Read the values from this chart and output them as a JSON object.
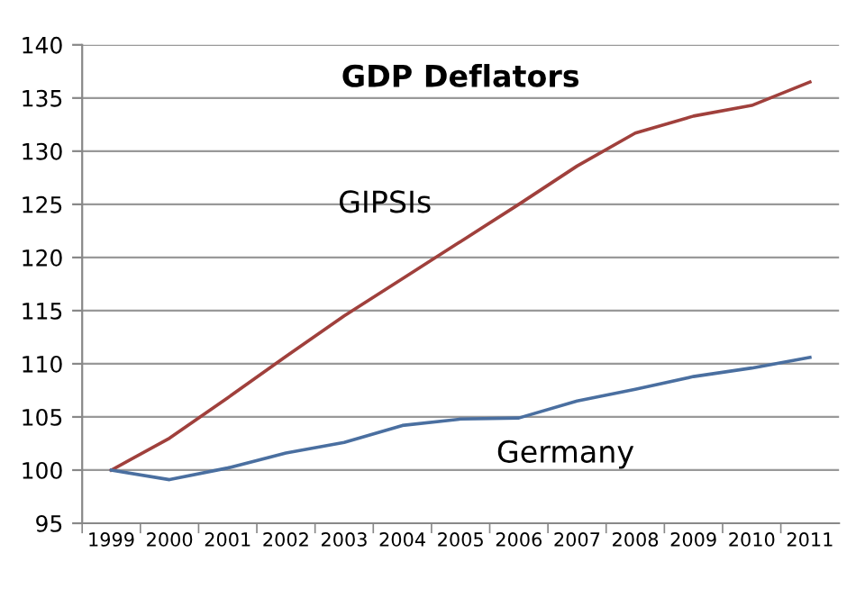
{
  "chart_data": {
    "type": "line",
    "title": "GDP Deflators",
    "categories": [
      "1999",
      "2000",
      "2001",
      "2002",
      "2003",
      "2004",
      "2005",
      "2006",
      "2007",
      "2008",
      "2009",
      "2010",
      "2011"
    ],
    "series": [
      {
        "name": "GIPSIs",
        "color": "#a0403c",
        "values": [
          100,
          103,
          106.8,
          110.7,
          114.5,
          118,
          121.5,
          125,
          128.6,
          131.7,
          133.3,
          134.3,
          136.5
        ]
      },
      {
        "name": "Germany",
        "color": "#4a6fa0",
        "values": [
          100,
          99.1,
          100.2,
          101.6,
          102.6,
          104.2,
          104.8,
          104.9,
          106.5,
          107.6,
          108.8,
          109.6,
          110.6
        ]
      }
    ],
    "ylim": [
      95,
      140
    ],
    "yticks": [
      95,
      100,
      105,
      110,
      115,
      120,
      125,
      130,
      135,
      140
    ],
    "grid": "y",
    "marker": "none",
    "line_style": "solid"
  }
}
